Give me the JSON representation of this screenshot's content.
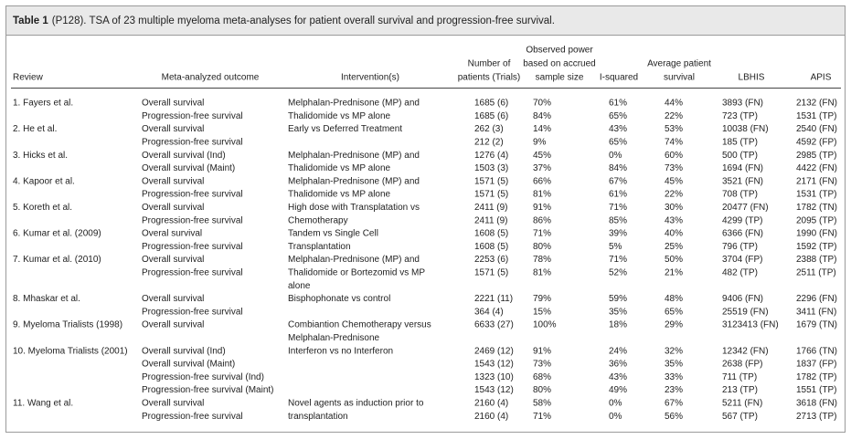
{
  "table": {
    "label": "Table 1",
    "caption": "(P128).  TSA of 23 multiple myeloma meta-analyses for patient overall survival and progression-free survival.",
    "headers": [
      [
        "Review"
      ],
      [
        "Meta-analyzed outcome"
      ],
      [
        "Intervention(s)"
      ],
      [
        "Number of",
        "patients (Trials)"
      ],
      [
        "Observed power",
        "based on accrued",
        "sample size"
      ],
      [
        "I-squared"
      ],
      [
        "Average patient",
        "survival"
      ],
      [
        "LBHIS"
      ],
      [
        "APIS"
      ]
    ],
    "groups": [
      {
        "review": "1. Fayers et al.",
        "intervention": [
          "Melphalan-Prednisone (MP) and",
          "Thalidomide vs MP alone"
        ],
        "rows": [
          [
            "Overall survival",
            "1685 (6)",
            "70%",
            "61%",
            "44%",
            "3893 (FN)",
            "2132 (FN)"
          ],
          [
            "Progression-free survival",
            "1685 (6)",
            "84%",
            "65%",
            "22%",
            "723 (TP)",
            "1531 (TP)"
          ]
        ]
      },
      {
        "review": "2. He et al.",
        "intervention": [
          "Early vs Deferred Treatment"
        ],
        "rows": [
          [
            "Overall survival",
            "262 (3)",
            "14%",
            "43%",
            "53%",
            "10038 (FN)",
            "2540 (FN)"
          ],
          [
            "Progression-free survival",
            "212 (2)",
            "9%",
            "65%",
            "74%",
            "185 (TP)",
            "4592 (FP)"
          ]
        ]
      },
      {
        "review": "3. Hicks et al.",
        "intervention": [
          "Melphalan-Prednisone (MP) and",
          "Thalidomide vs MP alone"
        ],
        "rows": [
          [
            "Overall survival (Ind)",
            "1276 (4)",
            "45%",
            "0%",
            "60%",
            "500 (TP)",
            "2985 (TP)"
          ],
          [
            "Overall survival (Maint)",
            "1503 (3)",
            "37%",
            "84%",
            "73%",
            "1694 (FN)",
            "4422 (FN)"
          ]
        ]
      },
      {
        "review": "4. Kapoor et al.",
        "intervention": [
          "Melphalan-Prednisone (MP) and",
          "Thalidomide vs MP alone"
        ],
        "rows": [
          [
            "Overall survival",
            "1571 (5)",
            "66%",
            "67%",
            "45%",
            "3521 (FN)",
            "2171 (FN)"
          ],
          [
            "Progression-free survival",
            "1571 (5)",
            "81%",
            "61%",
            "22%",
            "708 (TP)",
            "1531 (TP)"
          ]
        ]
      },
      {
        "review": "5. Koreth et al.",
        "intervention": [
          "High dose with Transplatation vs",
          "Chemotherapy"
        ],
        "rows": [
          [
            "Overall survival",
            "2411 (9)",
            "91%",
            "71%",
            "30%",
            "20477 (FN)",
            "1782 (TN)"
          ],
          [
            "Progression-free survival",
            "2411 (9)",
            "86%",
            "85%",
            "43%",
            "4299 (TP)",
            "2095 (TP)"
          ]
        ]
      },
      {
        "review": "6. Kumar et al. (2009)",
        "intervention": [
          "Tandem vs Single Cell",
          "Transplantation"
        ],
        "rows": [
          [
            "Overal survival",
            "1608 (5)",
            "71%",
            "39%",
            "40%",
            "6366 (FN)",
            "1990 (FN)"
          ],
          [
            "Progression-free survival",
            "1608 (5)",
            "80%",
            "5%",
            "25%",
            "796 (TP)",
            "1592 (TP)"
          ]
        ]
      },
      {
        "review": "7. Kumar et al. (2010)",
        "intervention": [
          "Melphalan-Prednisone (MP) and",
          "Thalidomide or Bortezomid vs MP",
          "alone"
        ],
        "rows": [
          [
            "Overall survival",
            "2253 (6)",
            "78%",
            "71%",
            "50%",
            "3704 (FP)",
            "2388 (TP)"
          ],
          [
            "Progression-free survival",
            "1571 (5)",
            "81%",
            "52%",
            "21%",
            "482 (TP)",
            "2511 (TP)"
          ]
        ]
      },
      {
        "review": "8. Mhaskar et al.",
        "intervention": [
          "Bisphophonate vs control"
        ],
        "rows": [
          [
            "Overall survival",
            "2221 (11)",
            "79%",
            "59%",
            "48%",
            "9406 (FN)",
            "2296 (FN)"
          ],
          [
            "Progression-free survival",
            "364 (4)",
            "15%",
            "35%",
            "65%",
            "25519 (FN)",
            "3411 (FN)"
          ]
        ]
      },
      {
        "review": "9. Myeloma Trialists (1998)",
        "intervention": [
          "Combiantion Chemotherapy versus",
          "Melphalan-Prednisone"
        ],
        "rows": [
          [
            "Overall survival",
            "6633 (27)",
            "100%",
            "18%",
            "29%",
            "3123413 (FN)",
            "1679 (TN)"
          ]
        ]
      },
      {
        "review": "10. Myeloma Trialists (2001)",
        "intervention": [
          "Interferon vs no Interferon"
        ],
        "rows": [
          [
            "Overall survival (Ind)",
            "2469 (12)",
            "91%",
            "24%",
            "32%",
            "12342 (FN)",
            "1766 (TN)"
          ],
          [
            "Overall survival (Maint)",
            "1543 (12)",
            "73%",
            "36%",
            "35%",
            "2638 (FP)",
            "1837 (FP)"
          ],
          [
            "Progression-free survival (Ind)",
            "1323 (10)",
            "68%",
            "43%",
            "33%",
            "711 (TP)",
            "1782 (TP)"
          ],
          [
            "Progression-free survival (Maint)",
            "1543 (12)",
            "80%",
            "49%",
            "23%",
            "213 (TP)",
            "1551 (TP)"
          ]
        ]
      },
      {
        "review": "11. Wang et al.",
        "intervention": [
          "Novel agents as induction prior to",
          "transplantation"
        ],
        "rows": [
          [
            "Overall survival",
            "2160 (4)",
            "58%",
            "0%",
            "67%",
            "5211 (FN)",
            "3618 (FN)"
          ],
          [
            "Progression-free survival",
            "2160 (4)",
            "71%",
            "0%",
            "56%",
            "567 (TP)",
            "2713 (TP)"
          ]
        ]
      }
    ]
  }
}
